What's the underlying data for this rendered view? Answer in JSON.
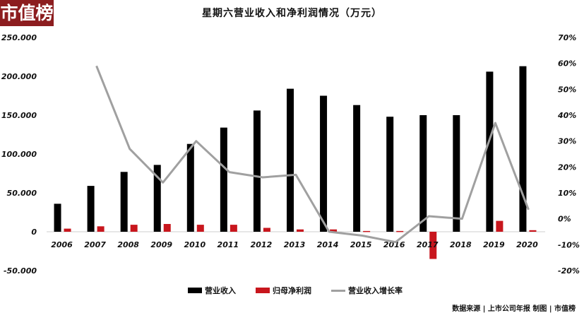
{
  "logo": {
    "text": "市值榜",
    "color": "#8c1d1f"
  },
  "title": "星期六营业收入和净利润情况（万元）",
  "legend": [
    {
      "label": "营业收入",
      "color": "#000000",
      "type": "bar"
    },
    {
      "label": "归母净利润",
      "color": "#c8161d",
      "type": "bar"
    },
    {
      "label": "营业收入增长率",
      "color": "#a0a0a0",
      "type": "line"
    }
  ],
  "source": "数据来源 | 上市公司年报  制图 | 市值榜",
  "chart_data": {
    "type": "bar",
    "title": "星期六营业收入和净利润情况（万元）",
    "categories": [
      "2006",
      "2007",
      "2008",
      "2009",
      "2010",
      "2011",
      "2012",
      "2013",
      "2014",
      "2015",
      "2016",
      "2017",
      "2018",
      "2019",
      "2020"
    ],
    "series": [
      {
        "name": "营业收入",
        "type": "bar",
        "axis": "left",
        "color": "#000000",
        "values": [
          36000,
          59000,
          77000,
          86000,
          113000,
          134000,
          156000,
          184000,
          175000,
          163000,
          148000,
          150000,
          150000,
          206000,
          213000
        ]
      },
      {
        "name": "归母净利润",
        "type": "bar",
        "axis": "left",
        "color": "#c8161d",
        "values": [
          4000,
          7000,
          9000,
          10000,
          9000,
          9000,
          5000,
          3000,
          3000,
          1000,
          1000,
          -35000,
          0,
          14000,
          2000
        ]
      },
      {
        "name": "营业收入增长率",
        "type": "line",
        "axis": "right",
        "color": "#a0a0a0",
        "values": [
          null,
          59,
          27,
          14,
          30,
          18,
          16,
          17,
          -5,
          -6.5,
          -9,
          1,
          0,
          37,
          3.5
        ]
      }
    ],
    "left_axis": {
      "ticks": [
        "250.000",
        "200.000",
        "150.000",
        "100.000",
        "50.000",
        "0",
        "-50.000"
      ],
      "min": -50000,
      "max": 250000
    },
    "right_axis": {
      "ticks": [
        "70%",
        "60%",
        "50%",
        "40%",
        "30%",
        "20%",
        "10%",
        "0%",
        "-10%",
        "-20%"
      ],
      "min": -20,
      "max": 70,
      "unit": "%"
    },
    "xlabel": "",
    "ylabel": "万元",
    "grid": false,
    "legend_position": "bottom"
  }
}
